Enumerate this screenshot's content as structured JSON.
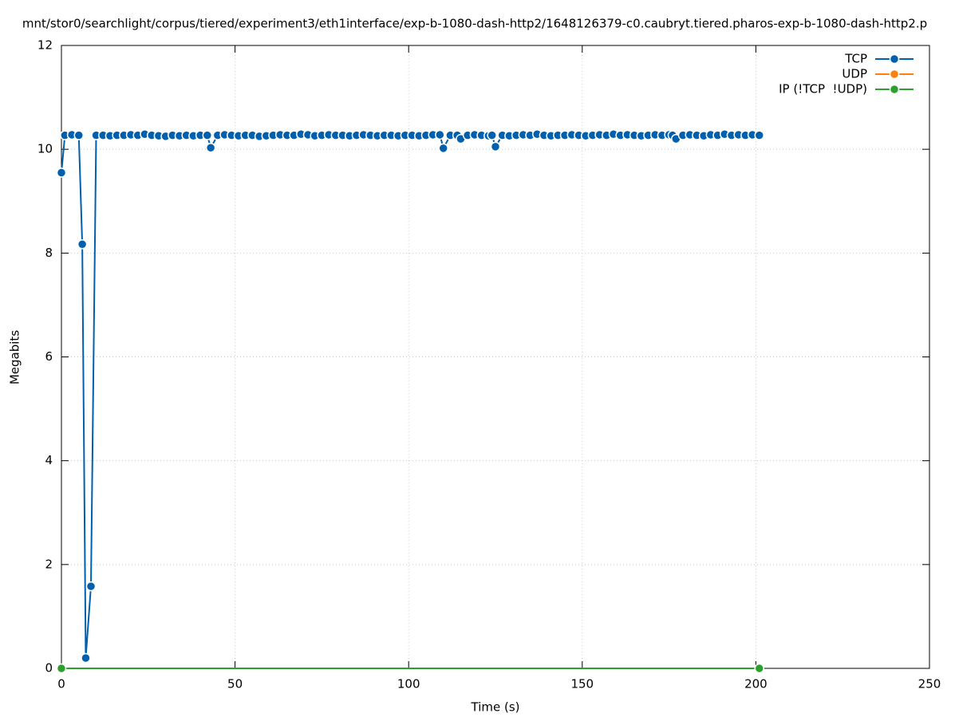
{
  "chart_data": {
    "type": "line",
    "title": "mnt/stor0/searchlight/corpus/tiered/experiment3/eth1interface/exp-b-1080-dash-http2/1648126379-c0.caubryt.tiered.pharos-exp-b-1080-dash-http2.p",
    "x_label": "Time (s)",
    "y_label": "Megabits",
    "xlim": [
      0,
      250
    ],
    "xticks": [
      0,
      50,
      100,
      150,
      200,
      250
    ],
    "ylim": [
      0,
      12
    ],
    "yticks": [
      0,
      2,
      4,
      6,
      8,
      10,
      12
    ],
    "grid": true,
    "legend": "top-right",
    "series": [
      {
        "name": "TCP",
        "color": "#0060ad",
        "x": [
          0,
          1,
          3,
          5,
          6,
          7,
          8.5,
          10,
          12,
          14,
          16,
          18,
          20,
          22,
          24,
          26,
          28,
          30,
          32,
          34,
          36,
          38,
          40,
          42,
          43,
          45,
          47,
          49,
          51,
          53,
          55,
          57,
          59,
          61,
          63,
          65,
          67,
          69,
          71,
          73,
          75,
          77,
          79,
          81,
          83,
          85,
          87,
          89,
          91,
          93,
          95,
          97,
          99,
          101,
          103,
          105,
          107,
          109,
          110,
          112,
          114,
          115,
          117,
          119,
          121,
          123,
          124,
          125,
          127,
          129,
          131,
          133,
          135,
          137,
          139,
          141,
          143,
          145,
          147,
          149,
          151,
          153,
          155,
          157,
          159,
          161,
          163,
          165,
          167,
          169,
          171,
          173,
          175,
          176,
          177,
          179,
          181,
          183,
          185,
          187,
          189,
          191,
          193,
          195,
          197,
          199,
          201
        ],
        "values": [
          9.55,
          10.27,
          10.28,
          10.27,
          8.17,
          0.2,
          1.58,
          10.27,
          10.27,
          10.26,
          10.27,
          10.27,
          10.28,
          10.27,
          10.29,
          10.27,
          10.26,
          10.25,
          10.27,
          10.26,
          10.27,
          10.26,
          10.27,
          10.27,
          10.03,
          10.27,
          10.28,
          10.27,
          10.26,
          10.27,
          10.27,
          10.25,
          10.26,
          10.27,
          10.28,
          10.27,
          10.27,
          10.29,
          10.28,
          10.26,
          10.27,
          10.28,
          10.27,
          10.27,
          10.26,
          10.27,
          10.28,
          10.27,
          10.26,
          10.27,
          10.27,
          10.26,
          10.27,
          10.27,
          10.26,
          10.27,
          10.28,
          10.28,
          10.02,
          10.27,
          10.27,
          10.2,
          10.27,
          10.28,
          10.27,
          10.26,
          10.27,
          10.05,
          10.27,
          10.26,
          10.27,
          10.28,
          10.27,
          10.29,
          10.27,
          10.26,
          10.27,
          10.27,
          10.28,
          10.27,
          10.26,
          10.27,
          10.28,
          10.27,
          10.29,
          10.27,
          10.28,
          10.27,
          10.26,
          10.27,
          10.28,
          10.27,
          10.28,
          10.27,
          10.2,
          10.27,
          10.28,
          10.27,
          10.26,
          10.28,
          10.27,
          10.29,
          10.27,
          10.28,
          10.27,
          10.28,
          10.27
        ]
      },
      {
        "name": "UDP",
        "color": "#ff7f0e",
        "x": [],
        "values": []
      },
      {
        "name": "IP (!TCP  !UDP)",
        "color": "#2ca02c",
        "x": [
          0,
          201
        ],
        "values": [
          0,
          0
        ]
      }
    ]
  }
}
